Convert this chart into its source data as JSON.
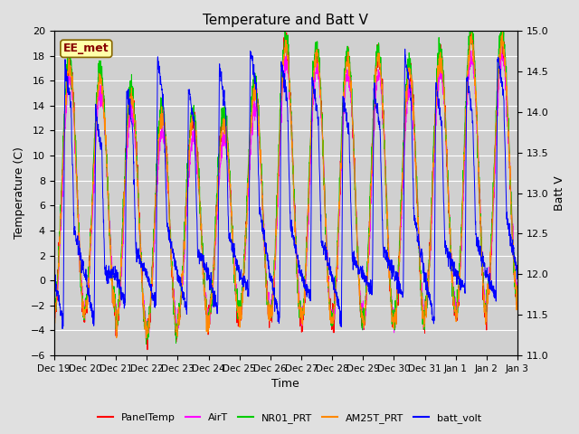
{
  "title": "Temperature and Batt V",
  "xlabel": "Time",
  "ylabel_left": "Temperature (C)",
  "ylabel_right": "Batt V",
  "annotation": "EE_met",
  "ylim_left": [
    -6,
    20
  ],
  "ylim_right": [
    11.0,
    15.0
  ],
  "yticks_left": [
    -6,
    -4,
    -2,
    0,
    2,
    4,
    6,
    8,
    10,
    12,
    14,
    16,
    18,
    20
  ],
  "yticks_right": [
    11.0,
    11.5,
    12.0,
    12.5,
    13.0,
    13.5,
    14.0,
    14.5,
    15.0
  ],
  "n_days": 15,
  "xtick_labels": [
    "Dec 19",
    "Dec 20",
    "Dec 21",
    "Dec 22",
    "Dec 23",
    "Dec 24",
    "Dec 25",
    "Dec 26",
    "Dec 27",
    "Dec 28",
    "Dec 29",
    "Dec 30",
    "Dec 31",
    "Jan 1",
    "Jan 2",
    "Jan 3"
  ],
  "colors": {
    "PanelTemp": "#ff0000",
    "AirT": "#ff00ff",
    "NR01_PRT": "#00cc00",
    "AM25T_PRT": "#ff8800",
    "batt_volt": "#0000ff"
  },
  "legend_labels": [
    "PanelTemp",
    "AirT",
    "NR01_PRT",
    "AM25T_PRT",
    "batt_volt"
  ],
  "fig_bg_color": "#e0e0e0",
  "plot_bg_color": "#d0d0d0",
  "grid_color": "#ffffff",
  "annotation_bg": "#ffffaa",
  "annotation_border": "#886600",
  "annotation_text_color": "#880000",
  "linewidth": 0.7
}
